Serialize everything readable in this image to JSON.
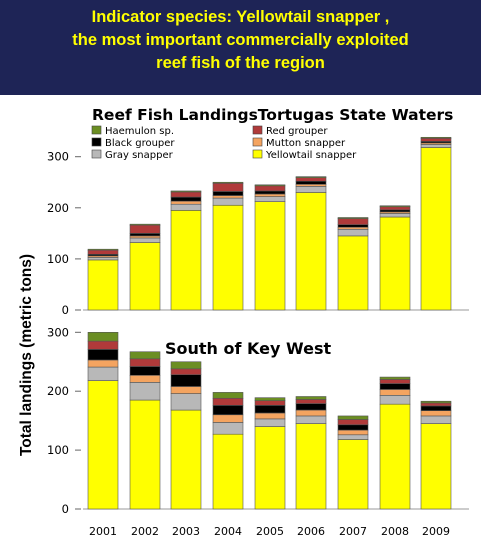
{
  "banner": {
    "line1": "Indicator species: Yellowtail snapper ,",
    "line2": "the most important commercially exploited",
    "line3": "reef  fish of the region"
  },
  "y_axis_label": "Total  landings (metric tons)",
  "colors": {
    "Yellowtail snapper": "#ffff00",
    "Gray snapper": "#b8b8b8",
    "Mutton snapper": "#f4a460",
    "Black grouper": "#000000",
    "Red grouper": "#b03a3a",
    "Haemulon sp.": "#6b8e23"
  },
  "chart_data": [
    {
      "type": "bar",
      "title": "Reef Fish LandingsTortugas State Waters",
      "categories": [
        "2001",
        "2002",
        "2003",
        "2004",
        "2005",
        "2006",
        "2007",
        "2008",
        "2009"
      ],
      "stacked": true,
      "ylim": [
        0,
        350
      ],
      "yticks": [
        0,
        100,
        200,
        300
      ],
      "legend": {
        "placement": "top-left",
        "entries": [
          "Haemulon sp.",
          "Red grouper",
          "Black grouper",
          "Mutton snapper",
          "Gray snapper",
          "Yellowtail snapper"
        ]
      },
      "series": [
        {
          "name": "Yellowtail snapper",
          "values": [
            98,
            132,
            195,
            205,
            212,
            230,
            145,
            182,
            318
          ]
        },
        {
          "name": "Gray snapper",
          "values": [
            5,
            9,
            12,
            14,
            10,
            12,
            13,
            7,
            6
          ]
        },
        {
          "name": "Mutton snapper",
          "values": [
            3,
            4,
            6,
            5,
            5,
            4,
            4,
            3,
            3
          ]
        },
        {
          "name": "Black grouper",
          "values": [
            3,
            5,
            8,
            8,
            6,
            6,
            5,
            4,
            3
          ]
        },
        {
          "name": "Red grouper",
          "values": [
            8,
            16,
            10,
            16,
            10,
            7,
            12,
            6,
            6
          ]
        },
        {
          "name": "Haemulon sp.",
          "values": [
            2,
            2,
            2,
            2,
            2,
            2,
            2,
            2,
            2
          ]
        }
      ]
    },
    {
      "type": "bar",
      "title": "South of Key West",
      "categories": [
        "2001",
        "2002",
        "2003",
        "2004",
        "2005",
        "2006",
        "2007",
        "2008",
        "2009"
      ],
      "stacked": true,
      "ylim": [
        0,
        300
      ],
      "yticks": [
        0,
        100,
        200,
        300
      ],
      "series": [
        {
          "name": "Yellowtail snapper",
          "values": [
            218,
            185,
            168,
            127,
            140,
            145,
            118,
            178,
            145
          ]
        },
        {
          "name": "Gray snapper",
          "values": [
            23,
            30,
            28,
            20,
            13,
            13,
            8,
            15,
            13
          ]
        },
        {
          "name": "Mutton snapper",
          "values": [
            12,
            12,
            12,
            13,
            10,
            10,
            8,
            10,
            9
          ]
        },
        {
          "name": "Black grouper",
          "values": [
            18,
            15,
            20,
            16,
            13,
            11,
            9,
            10,
            8
          ]
        },
        {
          "name": "Red grouper",
          "values": [
            14,
            13,
            10,
            12,
            8,
            7,
            9,
            7,
            5
          ]
        },
        {
          "name": "Haemulon sp.",
          "values": [
            15,
            12,
            12,
            10,
            5,
            5,
            6,
            4,
            3
          ]
        }
      ]
    }
  ]
}
